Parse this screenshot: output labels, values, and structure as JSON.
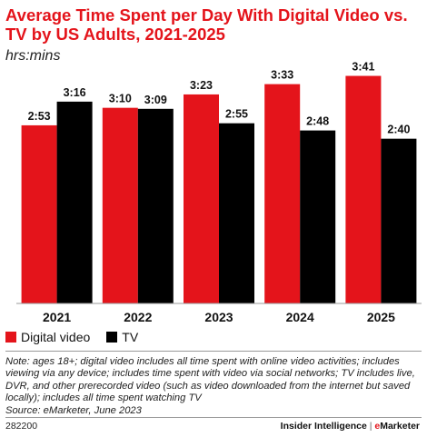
{
  "header": {
    "title": "Average Time Spent per Day With Digital Video vs. TV by US Adults, 2021-2025",
    "subtitle": "hrs:mins"
  },
  "colors": {
    "digital_video": "#e4141b",
    "tv": "#000000"
  },
  "chart_data": {
    "type": "bar",
    "categories": [
      "2021",
      "2022",
      "2023",
      "2024",
      "2025"
    ],
    "series": [
      {
        "name": "Digital video",
        "values": [
          173,
          190,
          203,
          213,
          221
        ],
        "labels": [
          "2:53",
          "3:10",
          "3:23",
          "3:33",
          "3:41"
        ]
      },
      {
        "name": "TV",
        "values": [
          196,
          189,
          175,
          168,
          160
        ],
        "labels": [
          "3:16",
          "3:09",
          "2:55",
          "2:48",
          "2:40"
        ]
      }
    ],
    "title": "Average Time Spent per Day With Digital Video vs. TV by US Adults, 2021-2025",
    "ylabel": "hrs:mins",
    "ylim": [
      0,
      240
    ],
    "grid": false,
    "legend": "bottom-left"
  },
  "legend": {
    "items": [
      {
        "label": "Digital video"
      },
      {
        "label": "TV"
      }
    ]
  },
  "note": {
    "text": "Note: ages 18+; digital video includes all time spent with online video activities; includes viewing via any device; includes time spent with video via social networks; TV includes live, DVR, and other prerecorded video (such as video downloaded from the internet but saved locally); includes all time spent watching TV",
    "source": "Source: eMarketer, June 2023"
  },
  "footer": {
    "chart_id": "282200",
    "brand_left": "Insider Intelligence",
    "brand_sep": "|",
    "brand_right_e": "e",
    "brand_right_rest": "Marketer"
  }
}
